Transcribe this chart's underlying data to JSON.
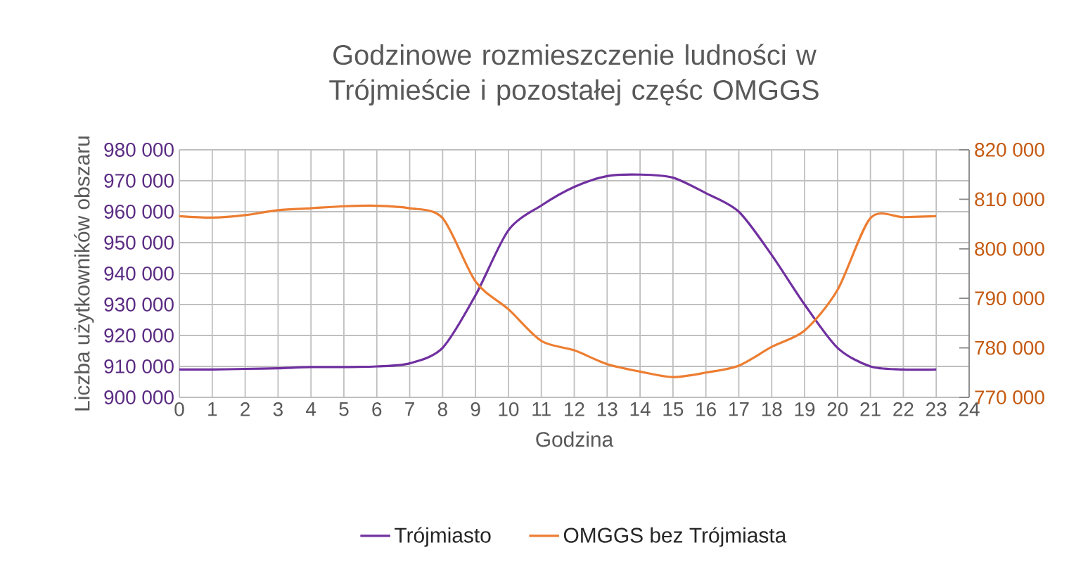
{
  "chart_data": {
    "type": "line",
    "title": "Godzinowe rozmieszczenie ludności w Trójmieście i pozostałej częśc OMGGS",
    "xlabel": "Godzina",
    "ylabel": "Liczba użytkowników obszaru",
    "x": [
      0,
      1,
      2,
      3,
      4,
      5,
      6,
      7,
      8,
      9,
      10,
      11,
      12,
      13,
      14,
      15,
      16,
      17,
      18,
      19,
      20,
      21,
      22,
      23
    ],
    "series": [
      {
        "name": "Trójmiasto",
        "color": "#7030a0",
        "axis": "y",
        "values": [
          909000,
          909000,
          909200,
          909400,
          909800,
          909800,
          910000,
          911000,
          916000,
          933000,
          954000,
          962000,
          968000,
          971500,
          972000,
          971000,
          966000,
          960000,
          946000,
          930000,
          916000,
          910000,
          909000,
          909000
        ]
      },
      {
        "name": "OMGGS bez Trójmiasta",
        "color": "#ed7d31",
        "axis": "y2",
        "values": [
          806600,
          806300,
          806800,
          807800,
          808200,
          808600,
          808700,
          808200,
          806200,
          793400,
          787800,
          781400,
          779500,
          776700,
          775200,
          774100,
          775000,
          776400,
          780200,
          783500,
          791700,
          806200,
          806400,
          806600
        ]
      }
    ],
    "xlim": [
      0,
      24
    ],
    "xticks": [
      0,
      1,
      2,
      3,
      4,
      5,
      6,
      7,
      8,
      9,
      10,
      11,
      12,
      13,
      14,
      15,
      16,
      17,
      18,
      19,
      20,
      21,
      22,
      23,
      24
    ],
    "ylim": [
      900000,
      980000
    ],
    "yticks": [
      {
        "value": 900000,
        "label": "900 000"
      },
      {
        "value": 910000,
        "label": "910 000"
      },
      {
        "value": 920000,
        "label": "920 000"
      },
      {
        "value": 930000,
        "label": "930 000"
      },
      {
        "value": 940000,
        "label": "940 000"
      },
      {
        "value": 950000,
        "label": "950 000"
      },
      {
        "value": 960000,
        "label": "960 000"
      },
      {
        "value": 970000,
        "label": "970 000"
      },
      {
        "value": 980000,
        "label": "980 000"
      }
    ],
    "y2lim": [
      770000,
      820000
    ],
    "y2ticks": [
      {
        "value": 770000,
        "label": "770 000"
      },
      {
        "value": 780000,
        "label": "780 000"
      },
      {
        "value": 790000,
        "label": "790 000"
      },
      {
        "value": 800000,
        "label": "800 000"
      },
      {
        "value": 810000,
        "label": "810 000"
      },
      {
        "value": 820000,
        "label": "820 000"
      }
    ],
    "grid": true,
    "legend": "bottom",
    "marker": "none",
    "line_style": "solid"
  }
}
